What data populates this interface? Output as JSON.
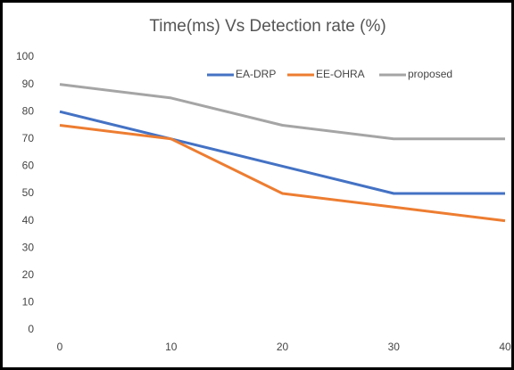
{
  "chart_data": {
    "type": "line",
    "title": "Time(ms) Vs Detection rate (%)",
    "x": [
      0,
      10,
      20,
      30,
      40
    ],
    "xlim": [
      0,
      40
    ],
    "xticks": [
      0,
      10,
      20,
      30,
      40
    ],
    "ylim": [
      0,
      100
    ],
    "yticks": [
      0,
      10,
      20,
      30,
      40,
      50,
      60,
      70,
      80,
      90,
      100
    ],
    "grid": false,
    "legend": "top",
    "series": [
      {
        "name": "EA-DRP",
        "color": "#4472c4",
        "values": [
          80,
          70,
          60,
          50,
          50
        ]
      },
      {
        "name": "EE-OHRA",
        "color": "#ed7d31",
        "values": [
          75,
          70,
          50,
          45,
          40
        ]
      },
      {
        "name": "proposed",
        "color": "#a5a5a5",
        "values": [
          90,
          85,
          75,
          70,
          70
        ]
      }
    ]
  }
}
